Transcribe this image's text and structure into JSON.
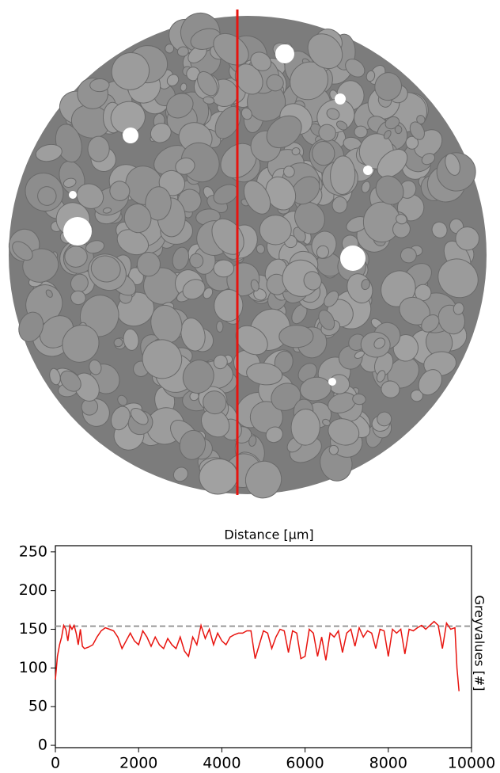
{
  "chart_data": {
    "type": "line",
    "xlabel": "Distance [µm]",
    "ylabel": "Greyvalues [#]",
    "x": [
      0,
      50,
      100,
      150,
      200,
      250,
      300,
      350,
      400,
      450,
      500,
      550,
      600,
      650,
      700,
      800,
      900,
      1000,
      1100,
      1200,
      1300,
      1400,
      1500,
      1600,
      1700,
      1800,
      1900,
      2000,
      2100,
      2200,
      2300,
      2400,
      2500,
      2600,
      2700,
      2800,
      2900,
      3000,
      3100,
      3200,
      3300,
      3400,
      3500,
      3600,
      3700,
      3800,
      3900,
      4000,
      4100,
      4200,
      4300,
      4400,
      4500,
      4600,
      4700,
      4800,
      4900,
      5000,
      5100,
      5200,
      5300,
      5400,
      5500,
      5600,
      5700,
      5800,
      5900,
      6000,
      6100,
      6200,
      6300,
      6400,
      6500,
      6600,
      6700,
      6800,
      6900,
      7000,
      7100,
      7200,
      7300,
      7400,
      7500,
      7600,
      7700,
      7800,
      7900,
      8000,
      8100,
      8200,
      8300,
      8400,
      8500,
      8600,
      8700,
      8800,
      8900,
      9000,
      9100,
      9200,
      9300,
      9400,
      9500,
      9600,
      9650,
      9700
    ],
    "values": [
      85,
      115,
      130,
      140,
      155,
      150,
      135,
      155,
      150,
      155,
      145,
      130,
      150,
      128,
      125,
      127,
      130,
      140,
      148,
      152,
      150,
      148,
      140,
      125,
      135,
      145,
      135,
      130,
      148,
      140,
      128,
      140,
      130,
      125,
      138,
      130,
      125,
      140,
      122,
      115,
      140,
      130,
      155,
      138,
      150,
      130,
      145,
      135,
      130,
      140,
      143,
      145,
      145,
      148,
      148,
      112,
      130,
      148,
      145,
      125,
      140,
      150,
      148,
      120,
      148,
      145,
      112,
      115,
      150,
      145,
      115,
      140,
      110,
      145,
      140,
      148,
      120,
      145,
      150,
      128,
      152,
      140,
      148,
      145,
      125,
      150,
      148,
      115,
      150,
      145,
      150,
      118,
      150,
      148,
      152,
      155,
      150,
      155,
      160,
      155,
      125,
      158,
      150,
      152,
      100,
      70
    ],
    "color": "#e8140f",
    "hline": {
      "value": 154,
      "color": "#999999"
    },
    "xlim": [
      0,
      10000
    ],
    "xticks": [
      0,
      2000,
      4000,
      6000,
      8000,
      10000
    ],
    "ylim": [
      -3,
      258
    ],
    "yticks": [
      0,
      50,
      100,
      150,
      200,
      250
    ]
  }
}
